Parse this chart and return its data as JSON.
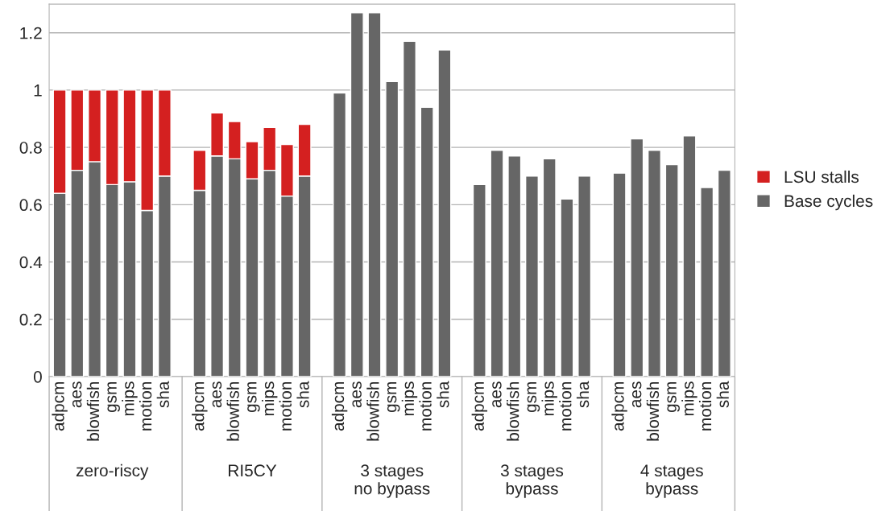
{
  "chart_data": {
    "type": "bar",
    "stacked": true,
    "categories": [
      "adpcm",
      "aes",
      "blowfish",
      "gsm",
      "mips",
      "motion",
      "sha",
      "adpcm",
      "aes",
      "blowfish",
      "gsm",
      "mips",
      "motion",
      "sha",
      "adpcm",
      "aes",
      "blowfish",
      "gsm",
      "mips",
      "motion",
      "sha",
      "adpcm",
      "aes",
      "blowfish",
      "gsm",
      "mips",
      "motion",
      "sha",
      "adpcm",
      "aes",
      "blowfish",
      "gsm",
      "mips",
      "motion",
      "sha"
    ],
    "series": [
      {
        "name": "Base cycles",
        "color": "#666666",
        "values": [
          0.64,
          0.72,
          0.75,
          0.67,
          0.68,
          0.58,
          0.7,
          0.65,
          0.77,
          0.76,
          0.69,
          0.72,
          0.63,
          0.7,
          0.99,
          1.27,
          1.27,
          1.03,
          1.17,
          0.94,
          1.14,
          0.67,
          0.79,
          0.77,
          0.7,
          0.76,
          0.62,
          0.7,
          0.71,
          0.83,
          0.79,
          0.74,
          0.84,
          0.66,
          0.72
        ]
      },
      {
        "name": "LSU stalls",
        "color": "#d42020",
        "values": [
          0.36,
          0.28,
          0.25,
          0.33,
          0.32,
          0.42,
          0.3,
          0.14,
          0.15,
          0.13,
          0.13,
          0.15,
          0.18,
          0.18,
          null,
          null,
          null,
          null,
          null,
          null,
          null,
          null,
          null,
          null,
          null,
          null,
          null,
          null,
          null,
          null,
          null,
          null,
          null,
          null,
          null
        ]
      }
    ],
    "annotations": [
      "zero-riscy",
      "RI5CY",
      "3 stages\nno bypass",
      "3 stages\nbypass",
      "4 stages\nbypass"
    ],
    "ylim": [
      0,
      1.3
    ],
    "yticks": [
      0,
      0.2,
      0.4,
      0.6,
      0.8,
      {
        "value": 1,
        "label": "1"
      },
      1.2
    ],
    "grid": "y",
    "legend": "right"
  }
}
